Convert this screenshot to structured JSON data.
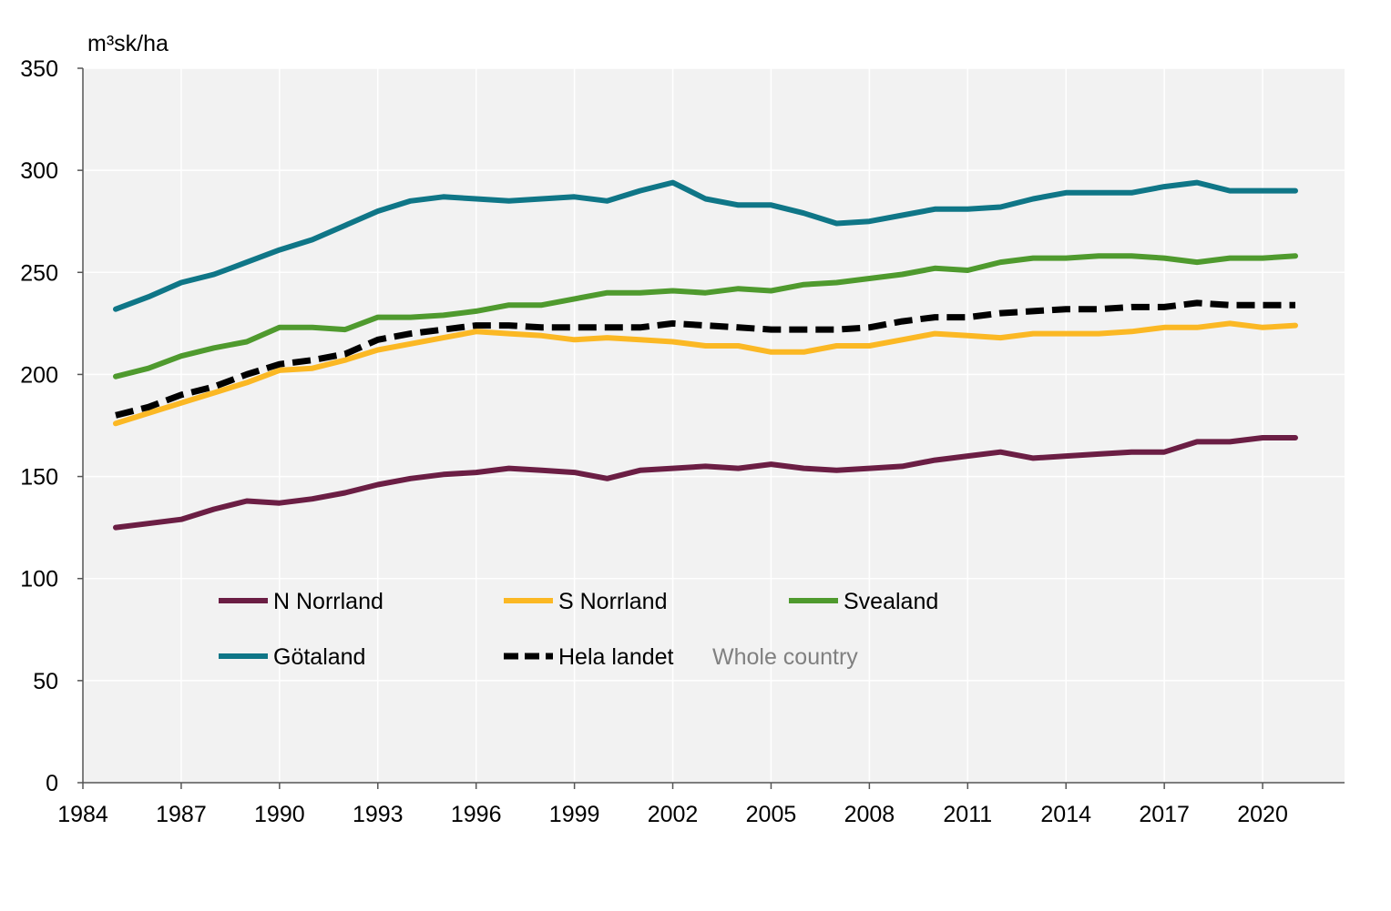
{
  "chart_data": {
    "type": "line",
    "title": "",
    "ylabel": "m³sk/ha",
    "xlabel": "",
    "xlim": [
      1984,
      2022.5
    ],
    "ylim": [
      0,
      350
    ],
    "x_ticks": [
      1984,
      1987,
      1990,
      1993,
      1996,
      1999,
      2002,
      2005,
      2008,
      2011,
      2014,
      2017,
      2020
    ],
    "y_ticks": [
      0,
      50,
      100,
      150,
      200,
      250,
      300,
      350
    ],
    "grid": true,
    "legend_position": "lower-center-inside",
    "x": [
      1985,
      1986,
      1987,
      1988,
      1989,
      1990,
      1991,
      1992,
      1993,
      1994,
      1995,
      1996,
      1997,
      1998,
      1999,
      2000,
      2001,
      2002,
      2003,
      2004,
      2005,
      2006,
      2007,
      2008,
      2009,
      2010,
      2011,
      2012,
      2013,
      2014,
      2015,
      2016,
      2017,
      2018,
      2019,
      2020,
      2021
    ],
    "series": [
      {
        "name": "N Norrland",
        "color": "#6b1e44",
        "dash": false,
        "values": [
          125,
          127,
          129,
          134,
          138,
          137,
          139,
          142,
          146,
          149,
          151,
          152,
          154,
          153,
          152,
          149,
          153,
          154,
          155,
          154,
          156,
          154,
          153,
          154,
          155,
          158,
          160,
          162,
          159,
          160,
          161,
          162,
          162,
          167,
          167,
          169,
          169
        ]
      },
      {
        "name": "S Norrland",
        "color": "#fbb824",
        "dash": false,
        "values": [
          176,
          181,
          186,
          191,
          196,
          202,
          203,
          207,
          212,
          215,
          218,
          221,
          220,
          219,
          217,
          218,
          217,
          216,
          214,
          214,
          211,
          211,
          214,
          214,
          217,
          220,
          219,
          218,
          220,
          220,
          220,
          221,
          223,
          223,
          225,
          223,
          224
        ]
      },
      {
        "name": "Svealand",
        "color": "#4f9a2e",
        "dash": false,
        "values": [
          199,
          203,
          209,
          213,
          216,
          223,
          223,
          222,
          228,
          228,
          229,
          231,
          234,
          234,
          237,
          240,
          240,
          241,
          240,
          242,
          241,
          244,
          245,
          247,
          249,
          252,
          251,
          255,
          257,
          257,
          258,
          258,
          257,
          255,
          257,
          257,
          258
        ]
      },
      {
        "name": "Götaland",
        "color": "#0f7687",
        "dash": false,
        "values": [
          232,
          238,
          245,
          249,
          255,
          261,
          266,
          273,
          280,
          285,
          287,
          286,
          285,
          286,
          287,
          285,
          290,
          294,
          286,
          283,
          283,
          279,
          274,
          275,
          278,
          281,
          281,
          282,
          286,
          289,
          289,
          289,
          292,
          294,
          290,
          290,
          290
        ]
      },
      {
        "name": "Hela landet",
        "color": "#000000",
        "dash": true,
        "values": [
          180,
          184,
          190,
          194,
          200,
          205,
          207,
          210,
          217,
          220,
          222,
          224,
          224,
          223,
          223,
          223,
          223,
          225,
          224,
          223,
          222,
          222,
          222,
          223,
          226,
          228,
          228,
          230,
          231,
          232,
          232,
          233,
          233,
          235,
          234,
          234,
          234
        ]
      }
    ],
    "legend_extra_note": "Whole country"
  }
}
